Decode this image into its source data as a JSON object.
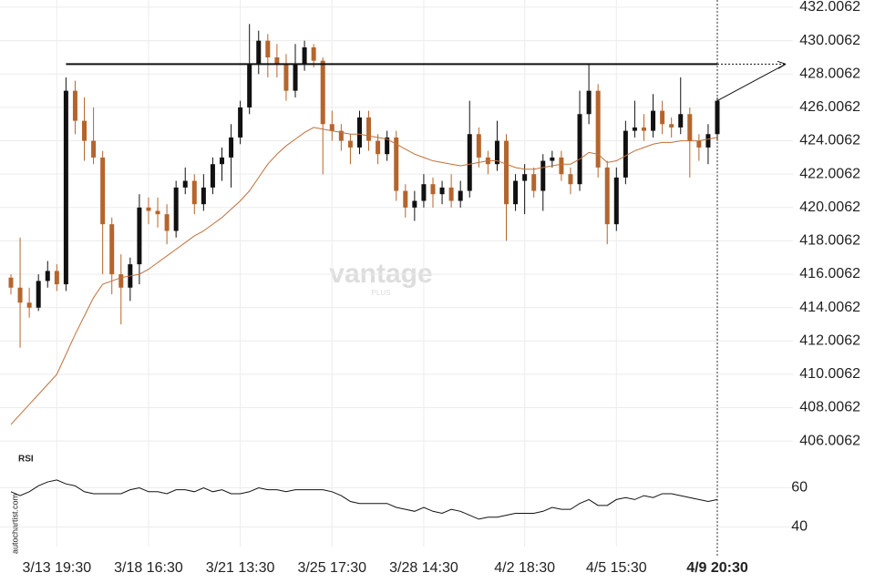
{
  "chart_data": {
    "type": "candlestick",
    "categories": [
      null,
      null,
      null,
      null,
      null,
      "3/13 19:30",
      null,
      null,
      null,
      null,
      null,
      null,
      null,
      null,
      null,
      "3/18 16:30",
      null,
      null,
      null,
      null,
      null,
      null,
      null,
      null,
      null,
      "3/21 13:30",
      null,
      null,
      null,
      null,
      null,
      null,
      null,
      null,
      null,
      "3/25 17:30",
      null,
      null,
      null,
      null,
      null,
      null,
      null,
      null,
      null,
      "3/28 14:30",
      null,
      null,
      null,
      null,
      null,
      null,
      null,
      null,
      null,
      null,
      "4/2 18:30",
      null,
      null,
      null,
      null,
      null,
      null,
      null,
      null,
      null,
      "4/5 15:30",
      null,
      null,
      null,
      null,
      null,
      null,
      null,
      null,
      null,
      null,
      "4/9 20:30"
    ],
    "open": [
      415.8,
      415.2,
      414.3,
      414.0,
      415.6,
      416.2,
      415.4,
      427.0,
      425.2,
      424.0,
      423.0,
      419.0,
      416.0,
      415.2,
      416.6,
      420.0,
      419.8,
      419.6,
      418.6,
      421.2,
      421.6,
      420.2,
      421.2,
      422.6,
      423.0,
      424.2,
      426.0,
      428.6,
      430.0,
      429.0,
      428.6,
      427.0,
      428.6,
      429.6,
      428.8,
      425.0,
      424.6,
      424.0,
      423.6,
      425.4,
      424.0,
      423.2,
      424.2,
      421.0,
      420.0,
      420.4,
      421.4,
      420.8,
      421.2,
      420.4,
      421.0,
      424.4,
      423.0,
      422.6,
      424.0,
      420.2,
      421.6,
      422.0,
      421.0,
      422.8,
      423.0,
      422.0,
      421.4,
      425.6,
      427.0,
      422.4,
      419.0,
      421.8,
      424.6,
      424.8,
      424.6,
      425.8,
      425.0,
      424.8,
      425.6,
      424.0,
      423.6,
      424.4
    ],
    "high": [
      416.0,
      418.2,
      415.2,
      416.0,
      416.8,
      416.6,
      427.8,
      427.6,
      426.6,
      426.0,
      423.4,
      419.4,
      417.2,
      417.0,
      420.8,
      420.6,
      420.6,
      420.2,
      421.6,
      422.4,
      422.0,
      422.0,
      423.0,
      423.6,
      425.0,
      426.4,
      431.0,
      430.6,
      430.4,
      429.8,
      429.2,
      429.8,
      430.0,
      429.8,
      429.0,
      425.8,
      425.0,
      424.4,
      425.8,
      425.8,
      424.4,
      424.6,
      424.6,
      421.4,
      421.0,
      422.0,
      421.8,
      421.6,
      422.0,
      421.6,
      426.4,
      424.8,
      423.4,
      425.2,
      424.4,
      422.0,
      422.6,
      422.4,
      423.2,
      423.4,
      423.4,
      422.4,
      427.0,
      428.6,
      427.4,
      422.8,
      422.4,
      425.2,
      426.4,
      425.6,
      426.8,
      426.4,
      425.4,
      427.8,
      426.0,
      424.4,
      425.0,
      426.6
    ],
    "low": [
      414.8,
      411.6,
      413.4,
      413.8,
      415.2,
      415.0,
      415.0,
      424.4,
      422.8,
      422.6,
      416.0,
      414.8,
      413.0,
      414.4,
      415.4,
      419.0,
      418.8,
      417.8,
      418.2,
      420.8,
      419.6,
      419.8,
      420.8,
      421.6,
      421.2,
      423.8,
      425.6,
      428.0,
      427.8,
      427.8,
      426.4,
      426.6,
      428.2,
      428.4,
      422.0,
      424.0,
      423.4,
      422.6,
      423.2,
      423.4,
      422.6,
      422.8,
      420.4,
      419.4,
      419.2,
      420.0,
      420.0,
      420.2,
      420.0,
      420.0,
      420.6,
      422.4,
      422.0,
      422.2,
      418.0,
      419.8,
      419.6,
      420.6,
      419.8,
      422.4,
      421.6,
      420.8,
      421.0,
      425.0,
      421.8,
      417.8,
      418.6,
      421.4,
      424.2,
      424.0,
      424.2,
      424.4,
      424.2,
      424.4,
      421.8,
      422.8,
      422.6,
      424.0
    ],
    "close": [
      415.2,
      414.3,
      414.0,
      415.6,
      416.2,
      415.4,
      427.0,
      425.2,
      424.0,
      423.0,
      419.0,
      416.0,
      415.2,
      416.6,
      420.0,
      419.8,
      419.6,
      418.6,
      421.2,
      421.6,
      420.2,
      421.2,
      422.6,
      423.0,
      424.2,
      426.0,
      428.6,
      430.0,
      429.0,
      428.6,
      427.0,
      428.6,
      429.6,
      428.8,
      425.0,
      424.6,
      424.0,
      423.6,
      425.4,
      424.0,
      423.2,
      424.2,
      421.0,
      420.0,
      420.4,
      421.4,
      420.8,
      421.2,
      420.4,
      421.0,
      424.4,
      423.0,
      422.6,
      424.0,
      420.2,
      421.6,
      422.0,
      421.0,
      422.8,
      423.0,
      422.0,
      421.4,
      425.6,
      427.0,
      422.4,
      419.0,
      421.8,
      424.6,
      424.8,
      424.6,
      425.8,
      425.0,
      424.8,
      425.6,
      424.0,
      423.6,
      424.4,
      426.4
    ],
    "colors": {
      "up": "#111111",
      "down": "#b5652c"
    },
    "ma": {
      "color": "#c0703a",
      "values": [
        407.0,
        407.6,
        408.2,
        408.8,
        409.4,
        410.0,
        411.2,
        412.4,
        413.5,
        414.6,
        415.4,
        415.6,
        415.8,
        415.9,
        416.0,
        416.3,
        416.7,
        417.1,
        417.5,
        417.9,
        418.3,
        418.6,
        419.0,
        419.4,
        419.9,
        420.4,
        421.0,
        421.8,
        422.6,
        423.2,
        423.7,
        424.1,
        424.5,
        424.8,
        424.7,
        424.6,
        424.5,
        424.4,
        424.4,
        424.3,
        424.2,
        424.1,
        423.8,
        423.5,
        423.2,
        423.0,
        422.8,
        422.7,
        422.6,
        422.5,
        422.6,
        422.7,
        422.8,
        422.8,
        422.6,
        422.4,
        422.3,
        422.3,
        422.4,
        422.5,
        422.6,
        422.6,
        422.9,
        423.3,
        423.2,
        422.7,
        422.8,
        423.1,
        423.4,
        423.6,
        423.8,
        423.9,
        423.9,
        424.0,
        424.0,
        424.0,
        424.1,
        424.2
      ]
    },
    "resistance": {
      "value": 428.6,
      "color": "#111111"
    },
    "ylim": [
      405.25,
      432.33
    ],
    "yticks": [
      432.0062,
      430.0062,
      428.0062,
      426.0062,
      424.0062,
      422.0062,
      420.0062,
      418.0062,
      416.0062,
      414.0062,
      412.0062,
      410.0062,
      408.0062,
      406.0062
    ],
    "grid": true,
    "rsi": {
      "title": "RSI",
      "color": "#111111",
      "ylim": [
        30,
        70
      ],
      "yticks": [
        60,
        40
      ],
      "values": [
        58,
        56,
        58,
        61,
        63,
        64,
        62,
        61,
        58,
        57,
        57,
        57,
        57,
        59,
        60,
        58,
        58,
        57,
        59,
        59,
        58,
        60,
        58,
        59,
        57,
        57,
        58,
        60,
        59,
        59,
        58,
        59,
        59,
        59,
        59,
        58,
        56,
        53,
        52,
        52,
        52,
        52,
        50,
        49,
        48,
        50,
        48,
        47,
        49,
        48,
        46,
        44,
        45,
        45,
        46,
        47,
        47,
        47,
        48,
        50,
        49,
        49,
        52,
        54,
        51,
        51,
        54,
        55,
        54,
        56,
        55,
        57,
        57,
        56,
        55,
        54,
        53,
        54
      ]
    },
    "watermark": {
      "brand": "vantage",
      "sub": "PLUS"
    },
    "source": "autochartist.com"
  }
}
